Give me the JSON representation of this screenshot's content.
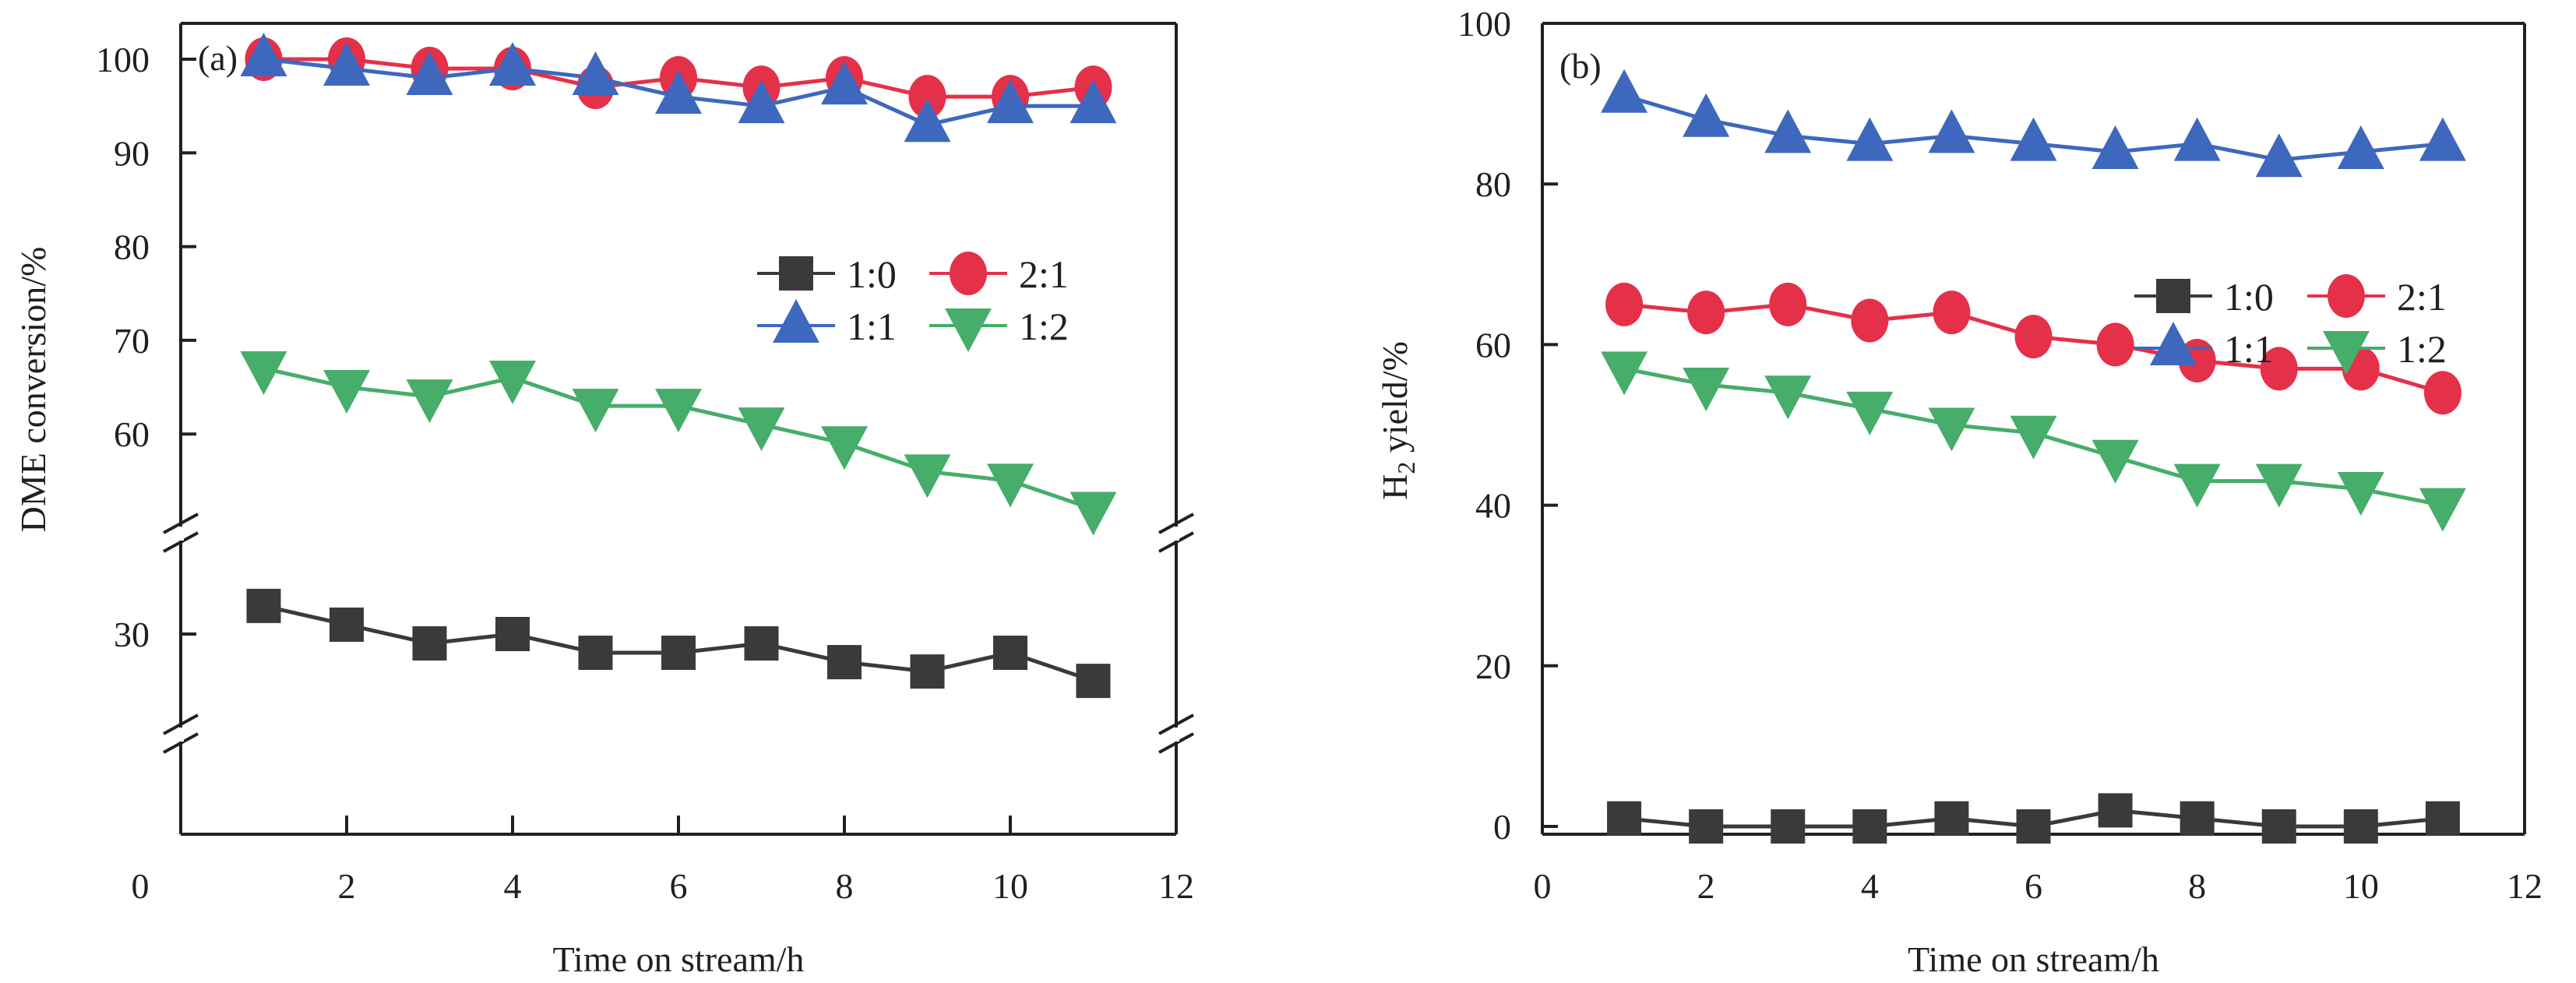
{
  "chart_data": [
    {
      "type": "line",
      "panel_label": "(a)",
      "xlabel": "Time on stream/h",
      "ylabel": "DME conversion/%",
      "xlim": [
        0,
        12
      ],
      "x_ticks": [
        0,
        2,
        4,
        6,
        8,
        10,
        12
      ],
      "y_axis_break": true,
      "y_segments": [
        {
          "range": [
            50,
            104
          ],
          "ticks": [
            60,
            70,
            80,
            90,
            100
          ]
        },
        {
          "range": [
            20,
            39
          ],
          "ticks": [
            30
          ]
        }
      ],
      "y_zero_label": "0",
      "grid": false,
      "legend_position": "upper-right-center",
      "x": [
        1,
        2,
        3,
        4,
        5,
        6,
        7,
        8,
        9,
        10,
        11
      ],
      "series": [
        {
          "name": "1:0",
          "marker": "square",
          "color": "#3a3a3c",
          "values": [
            33,
            31,
            29,
            30,
            28,
            28,
            29,
            27,
            26,
            28,
            25
          ]
        },
        {
          "name": "2:1",
          "marker": "circle",
          "color": "#e5304a",
          "values": [
            100,
            100,
            99,
            99,
            97,
            98,
            97,
            98,
            96,
            96,
            97
          ]
        },
        {
          "name": "1:1",
          "marker": "triangle-up",
          "color": "#3e68be",
          "values": [
            100,
            99,
            98,
            99,
            98,
            96,
            95,
            97,
            93,
            95,
            95
          ]
        },
        {
          "name": "1:2",
          "marker": "triangle-down",
          "color": "#46ad6a",
          "values": [
            67,
            65,
            64,
            66,
            63,
            63,
            61,
            59,
            56,
            55,
            52
          ]
        }
      ]
    },
    {
      "type": "line",
      "panel_label": "(b)",
      "xlabel": "Time on stream/h",
      "ylabel_main": "H",
      "ylabel_sub": "2",
      "ylabel_rest": " yield/%",
      "ylabel": "H2 yield/%",
      "xlim": [
        0,
        12
      ],
      "ylim": [
        -2,
        100
      ],
      "x_ticks": [
        0,
        2,
        4,
        6,
        8,
        10,
        12
      ],
      "y_ticks": [
        0,
        20,
        40,
        60,
        80,
        100
      ],
      "grid": false,
      "legend_position": "upper-right",
      "x": [
        1,
        2,
        3,
        4,
        5,
        6,
        7,
        8,
        9,
        10,
        11
      ],
      "series": [
        {
          "name": "1:0",
          "marker": "square",
          "color": "#3a3a3c",
          "values": [
            1,
            0,
            0,
            0,
            1,
            0,
            2,
            1,
            0,
            0,
            1
          ]
        },
        {
          "name": "2:1",
          "marker": "circle",
          "color": "#e5304a",
          "values": [
            65,
            64,
            65,
            63,
            64,
            61,
            60,
            58,
            57,
            57,
            54
          ]
        },
        {
          "name": "1:1",
          "marker": "triangle-up",
          "color": "#3e68be",
          "values": [
            91,
            88,
            86,
            85,
            86,
            85,
            84,
            85,
            83,
            84,
            85
          ]
        },
        {
          "name": "1:2",
          "marker": "triangle-down",
          "color": "#46ad6a",
          "values": [
            57,
            55,
            54,
            52,
            50,
            49,
            46,
            43,
            43,
            42,
            40
          ]
        }
      ]
    }
  ]
}
